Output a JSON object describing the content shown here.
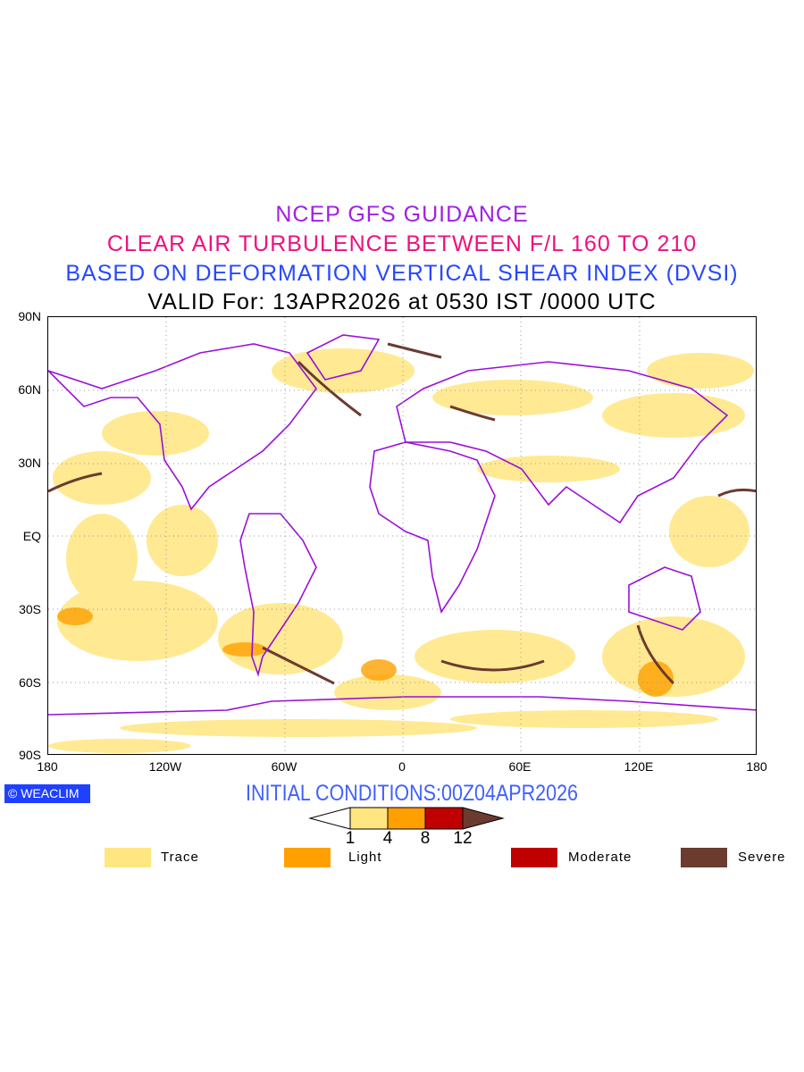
{
  "header": {
    "title": "NCEP GFS GUIDANCE",
    "subtitle": "CLEAR AIR TURBULENCE BETWEEN F/L 160 TO 210",
    "method": "BASED ON DEFORMATION VERTICAL SHEAR INDEX (DVSI)",
    "valid": "VALID For: 13APR2026 at 0530 IST /0000 UTC"
  },
  "map": {
    "lat_labels": [
      "90N",
      "60N",
      "30N",
      "EQ",
      "30S",
      "60S",
      "90S"
    ],
    "lon_labels": [
      "180",
      "120W",
      "60W",
      "0",
      "60E",
      "120E",
      "180"
    ]
  },
  "footer": {
    "logo": "WEACLIM",
    "initial_conditions": "INITIAL CONDITIONS:00Z04APR2026"
  },
  "colorbar": {
    "ticks": [
      "1",
      "4",
      "8",
      "12"
    ],
    "colors": [
      "#ffe680",
      "#ffa000",
      "#c00000",
      "#6b3b30"
    ]
  },
  "legend": [
    {
      "label": "Trace",
      "color": "#ffe680"
    },
    {
      "label": "Light",
      "color": "#ffa000"
    },
    {
      "label": "Moderate",
      "color": "#c00000"
    },
    {
      "label": "Severe",
      "color": "#6b3b30"
    }
  ]
}
